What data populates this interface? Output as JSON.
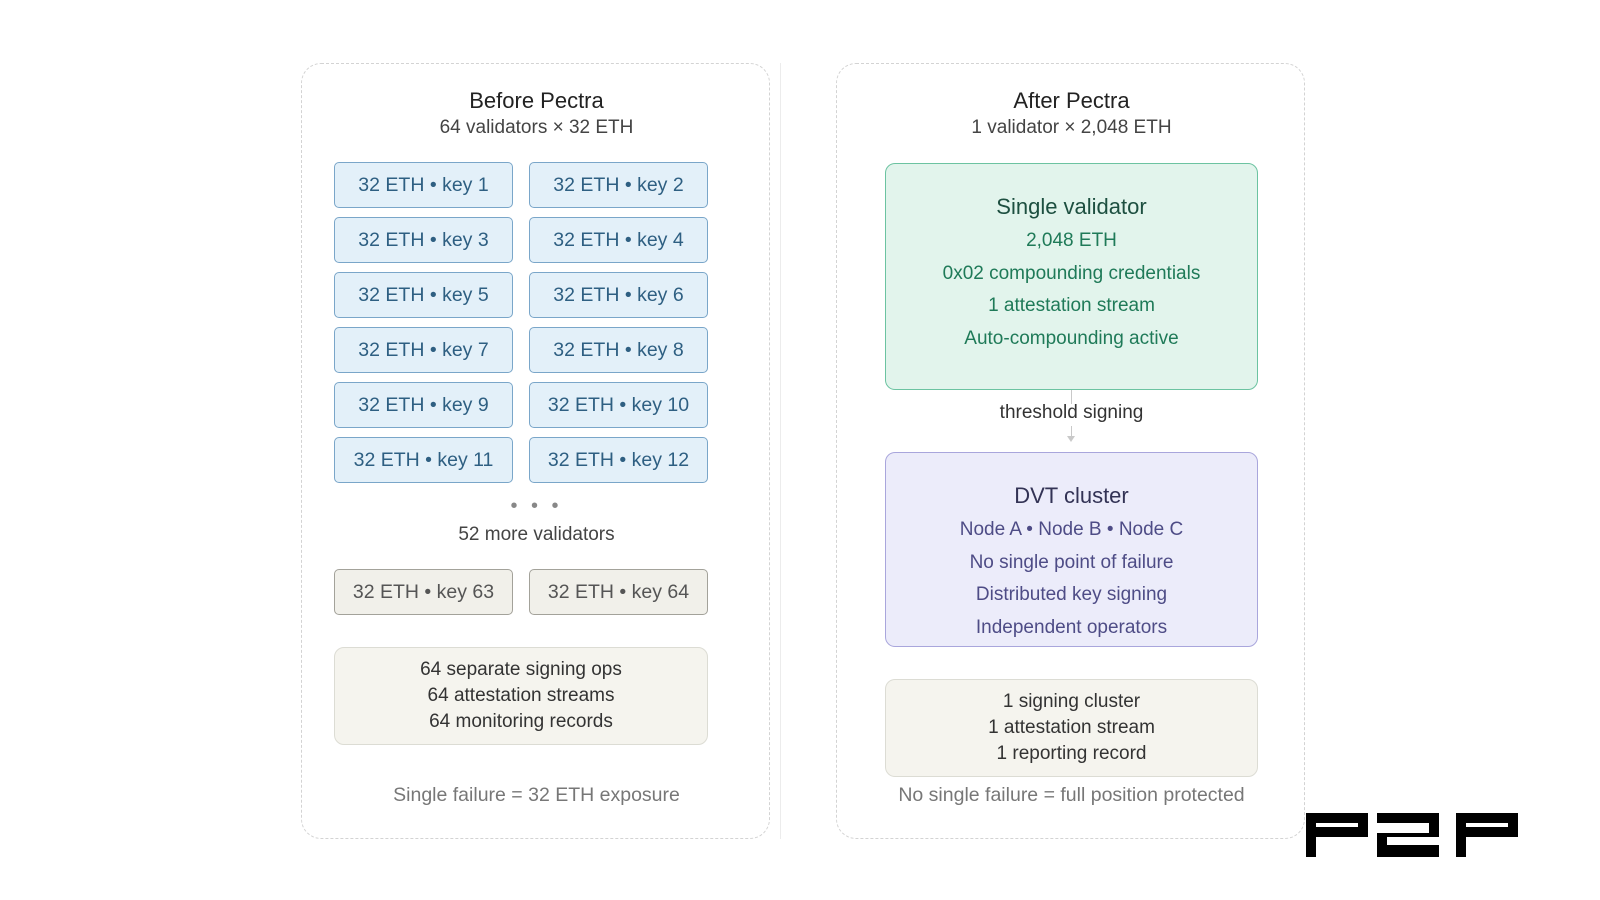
{
  "before": {
    "title": "Before Pectra",
    "subtitle": "64 validators × 32 ETH",
    "keys": [
      "32 ETH • key 1",
      "32 ETH • key 2",
      "32 ETH • key 3",
      "32 ETH • key 4",
      "32 ETH • key 5",
      "32 ETH • key 6",
      "32 ETH • key 7",
      "32 ETH • key 8",
      "32 ETH • key 9",
      "32 ETH • key 10",
      "32 ETH • key 11",
      "32 ETH • key 12"
    ],
    "ellipsis": "• • •",
    "more_label": "52 more validators",
    "last_keys": [
      "32 ETH • key 63",
      "32 ETH • key 64"
    ],
    "summary": [
      "64 separate signing ops",
      "64 attestation streams",
      "64 monitoring records"
    ],
    "footer": "Single failure = 32 ETH exposure"
  },
  "after": {
    "title": "After Pectra",
    "subtitle": "1 validator × 2,048 ETH",
    "validator": {
      "title": "Single validator",
      "lines": [
        "2,048 ETH",
        "0x02 compounding credentials",
        "1 attestation stream",
        "Auto-compounding active"
      ]
    },
    "connector_label": "threshold signing",
    "dvt": {
      "title": "DVT cluster",
      "lines": [
        "Node A • Node B • Node C",
        "No single point of failure",
        "Distributed key signing",
        "Independent operators"
      ]
    },
    "summary": [
      "1 signing cluster",
      "1 attestation stream",
      "1 reporting record"
    ],
    "footer": "No single failure = full position protected"
  },
  "logo": {
    "text": "p2p",
    "icon": "p2p-logo"
  },
  "colors": {
    "key_fill": "#e3f0f9",
    "key_border": "#7aa6c9",
    "validator_fill": "#e2f4ec",
    "validator_border": "#6cc3a1",
    "dvt_fill": "#ececfa",
    "dvt_border": "#a9a6dc",
    "summary_fill": "#f5f4ee"
  }
}
